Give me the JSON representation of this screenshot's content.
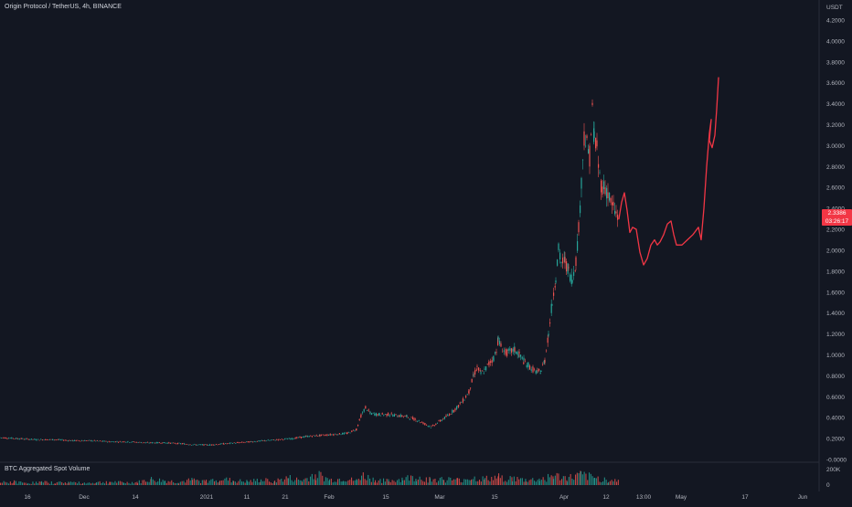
{
  "chart": {
    "title": "Origin Protocol / TetherUS, 4h, BINANCE",
    "currency": "USDT",
    "last_price": "2.3386",
    "countdown": "03:26:17",
    "volume_title": "BTC Aggregated Spot Volume",
    "volume_scale": [
      "200K",
      "0"
    ],
    "colors": {
      "background": "#131722",
      "up": "#26a69a",
      "down": "#ef5350",
      "drawing": "#f23645",
      "text": "#b2b5be"
    }
  },
  "chart_data": {
    "type": "line",
    "price_axis": [
      "4.2000",
      "4.0000",
      "3.8000",
      "3.6000",
      "3.4000",
      "3.2000",
      "3.0000",
      "2.8000",
      "2.6000",
      "2.4000",
      "2.2000",
      "2.0000",
      "1.8000",
      "1.6000",
      "1.4000",
      "1.2000",
      "1.0000",
      "0.8000",
      "0.6000",
      "0.4000",
      "0.2000",
      "-0.0000"
    ],
    "time_axis": [
      "16",
      "Dec",
      "14",
      "2021",
      "11",
      "21",
      "Feb",
      "15",
      "Mar",
      "15",
      "Apr",
      "12",
      "13:00",
      "May",
      "17",
      "Jun"
    ],
    "ylim": [
      0,
      4.2
    ],
    "series": [
      {
        "values": [
          [
            0,
            0.21
          ],
          [
            20,
            0.2
          ],
          [
            40,
            0.19
          ],
          [
            60,
            0.19
          ],
          [
            80,
            0.18
          ],
          [
            100,
            0.18
          ],
          [
            120,
            0.17
          ],
          [
            140,
            0.17
          ],
          [
            160,
            0.16
          ],
          [
            180,
            0.16
          ],
          [
            200,
            0.15
          ],
          [
            215,
            0.14
          ],
          [
            230,
            0.14
          ],
          [
            245,
            0.15
          ],
          [
            260,
            0.16
          ],
          [
            275,
            0.17
          ],
          [
            290,
            0.18
          ],
          [
            305,
            0.19
          ],
          [
            320,
            0.2
          ],
          [
            335,
            0.22
          ],
          [
            350,
            0.23
          ],
          [
            365,
            0.24
          ],
          [
            380,
            0.25
          ],
          [
            390,
            0.29
          ],
          [
            395,
            0.42
          ],
          [
            400,
            0.5
          ],
          [
            405,
            0.44
          ],
          [
            415,
            0.43
          ],
          [
            425,
            0.43
          ],
          [
            435,
            0.42
          ],
          [
            445,
            0.41
          ],
          [
            455,
            0.38
          ],
          [
            465,
            0.34
          ],
          [
            472,
            0.31
          ],
          [
            480,
            0.36
          ],
          [
            490,
            0.42
          ],
          [
            500,
            0.5
          ],
          [
            508,
            0.58
          ],
          [
            513,
            0.65
          ],
          [
            518,
            0.8
          ],
          [
            522,
            0.88
          ],
          [
            526,
            0.82
          ],
          [
            530,
            0.85
          ],
          [
            535,
            0.92
          ],
          [
            540,
            0.97
          ],
          [
            543,
            1.05
          ],
          [
            545,
            1.15
          ],
          [
            548,
            1.08
          ],
          [
            553,
            1.02
          ],
          [
            558,
            1.03
          ],
          [
            563,
            1.05
          ],
          [
            568,
            1.0
          ],
          [
            573,
            0.94
          ],
          [
            578,
            0.9
          ],
          [
            583,
            0.86
          ],
          [
            588,
            0.83
          ],
          [
            592,
            0.85
          ],
          [
            596,
            0.95
          ],
          [
            600,
            1.2
          ],
          [
            604,
            1.5
          ],
          [
            608,
            1.75
          ],
          [
            611,
            2.0
          ],
          [
            614,
            1.88
          ],
          [
            618,
            1.9
          ],
          [
            622,
            1.8
          ],
          [
            626,
            1.72
          ],
          [
            630,
            1.9
          ],
          [
            633,
            2.2
          ],
          [
            636,
            2.65
          ],
          [
            639,
            3.1
          ],
          [
            642,
            3.0
          ],
          [
            645,
            2.9
          ],
          [
            648,
            3.32
          ],
          [
            650,
            3.1
          ],
          [
            653,
            2.95
          ],
          [
            656,
            2.7
          ],
          [
            659,
            2.6
          ],
          [
            662,
            2.6
          ],
          [
            665,
            2.55
          ],
          [
            668,
            2.45
          ],
          [
            671,
            2.4
          ],
          [
            674,
            2.35
          ],
          [
            677,
            2.28
          ]
        ]
      }
    ],
    "volume_bars": [
      [
        0,
        0.18
      ],
      [
        15,
        0.22
      ],
      [
        30,
        0.15
      ],
      [
        45,
        0.2
      ],
      [
        60,
        0.17
      ],
      [
        75,
        0.21
      ],
      [
        90,
        0.14
      ],
      [
        105,
        0.19
      ],
      [
        120,
        0.23
      ],
      [
        135,
        0.17
      ],
      [
        150,
        0.2
      ],
      [
        165,
        0.4
      ],
      [
        180,
        0.3
      ],
      [
        195,
        0.22
      ],
      [
        210,
        0.35
      ],
      [
        225,
        0.26
      ],
      [
        240,
        0.45
      ],
      [
        255,
        0.3
      ],
      [
        270,
        0.25
      ],
      [
        285,
        0.35
      ],
      [
        300,
        0.28
      ],
      [
        315,
        0.5
      ],
      [
        330,
        0.3
      ],
      [
        345,
        0.8
      ],
      [
        360,
        0.35
      ],
      [
        375,
        0.45
      ],
      [
        390,
        0.3
      ],
      [
        395,
        0.7
      ],
      [
        410,
        0.35
      ],
      [
        425,
        0.28
      ],
      [
        440,
        0.45
      ],
      [
        455,
        0.55
      ],
      [
        470,
        0.38
      ],
      [
        485,
        0.42
      ],
      [
        500,
        0.35
      ],
      [
        515,
        0.5
      ],
      [
        530,
        0.42
      ],
      [
        545,
        0.55
      ],
      [
        560,
        0.45
      ],
      [
        575,
        0.35
      ],
      [
        590,
        0.4
      ],
      [
        605,
        0.65
      ],
      [
        620,
        0.48
      ],
      [
        635,
        0.7
      ],
      [
        650,
        0.5
      ],
      [
        665,
        0.35
      ],
      [
        676,
        0.3
      ]
    ],
    "drawing": [
      [
        677,
        2.3
      ],
      [
        680,
        2.46
      ],
      [
        683,
        2.55
      ],
      [
        686,
        2.38
      ],
      [
        689,
        2.17
      ],
      [
        692,
        2.22
      ],
      [
        696,
        2.2
      ],
      [
        700,
        1.98
      ],
      [
        704,
        1.86
      ],
      [
        708,
        1.92
      ],
      [
        712,
        2.05
      ],
      [
        716,
        2.1
      ],
      [
        719,
        2.05
      ],
      [
        722,
        2.08
      ],
      [
        726,
        2.15
      ],
      [
        730,
        2.25
      ],
      [
        734,
        2.28
      ],
      [
        737,
        2.15
      ],
      [
        740,
        2.05
      ],
      [
        746,
        2.05
      ],
      [
        752,
        2.1
      ],
      [
        758,
        2.15
      ],
      [
        764,
        2.22
      ],
      [
        767,
        2.1
      ],
      [
        770,
        2.4
      ],
      [
        773,
        2.8
      ],
      [
        776,
        3.12
      ],
      [
        778,
        3.25
      ],
      [
        776,
        3.05
      ],
      [
        779,
        2.98
      ],
      [
        782,
        3.1
      ],
      [
        784,
        3.35
      ],
      [
        786,
        3.65
      ]
    ]
  }
}
